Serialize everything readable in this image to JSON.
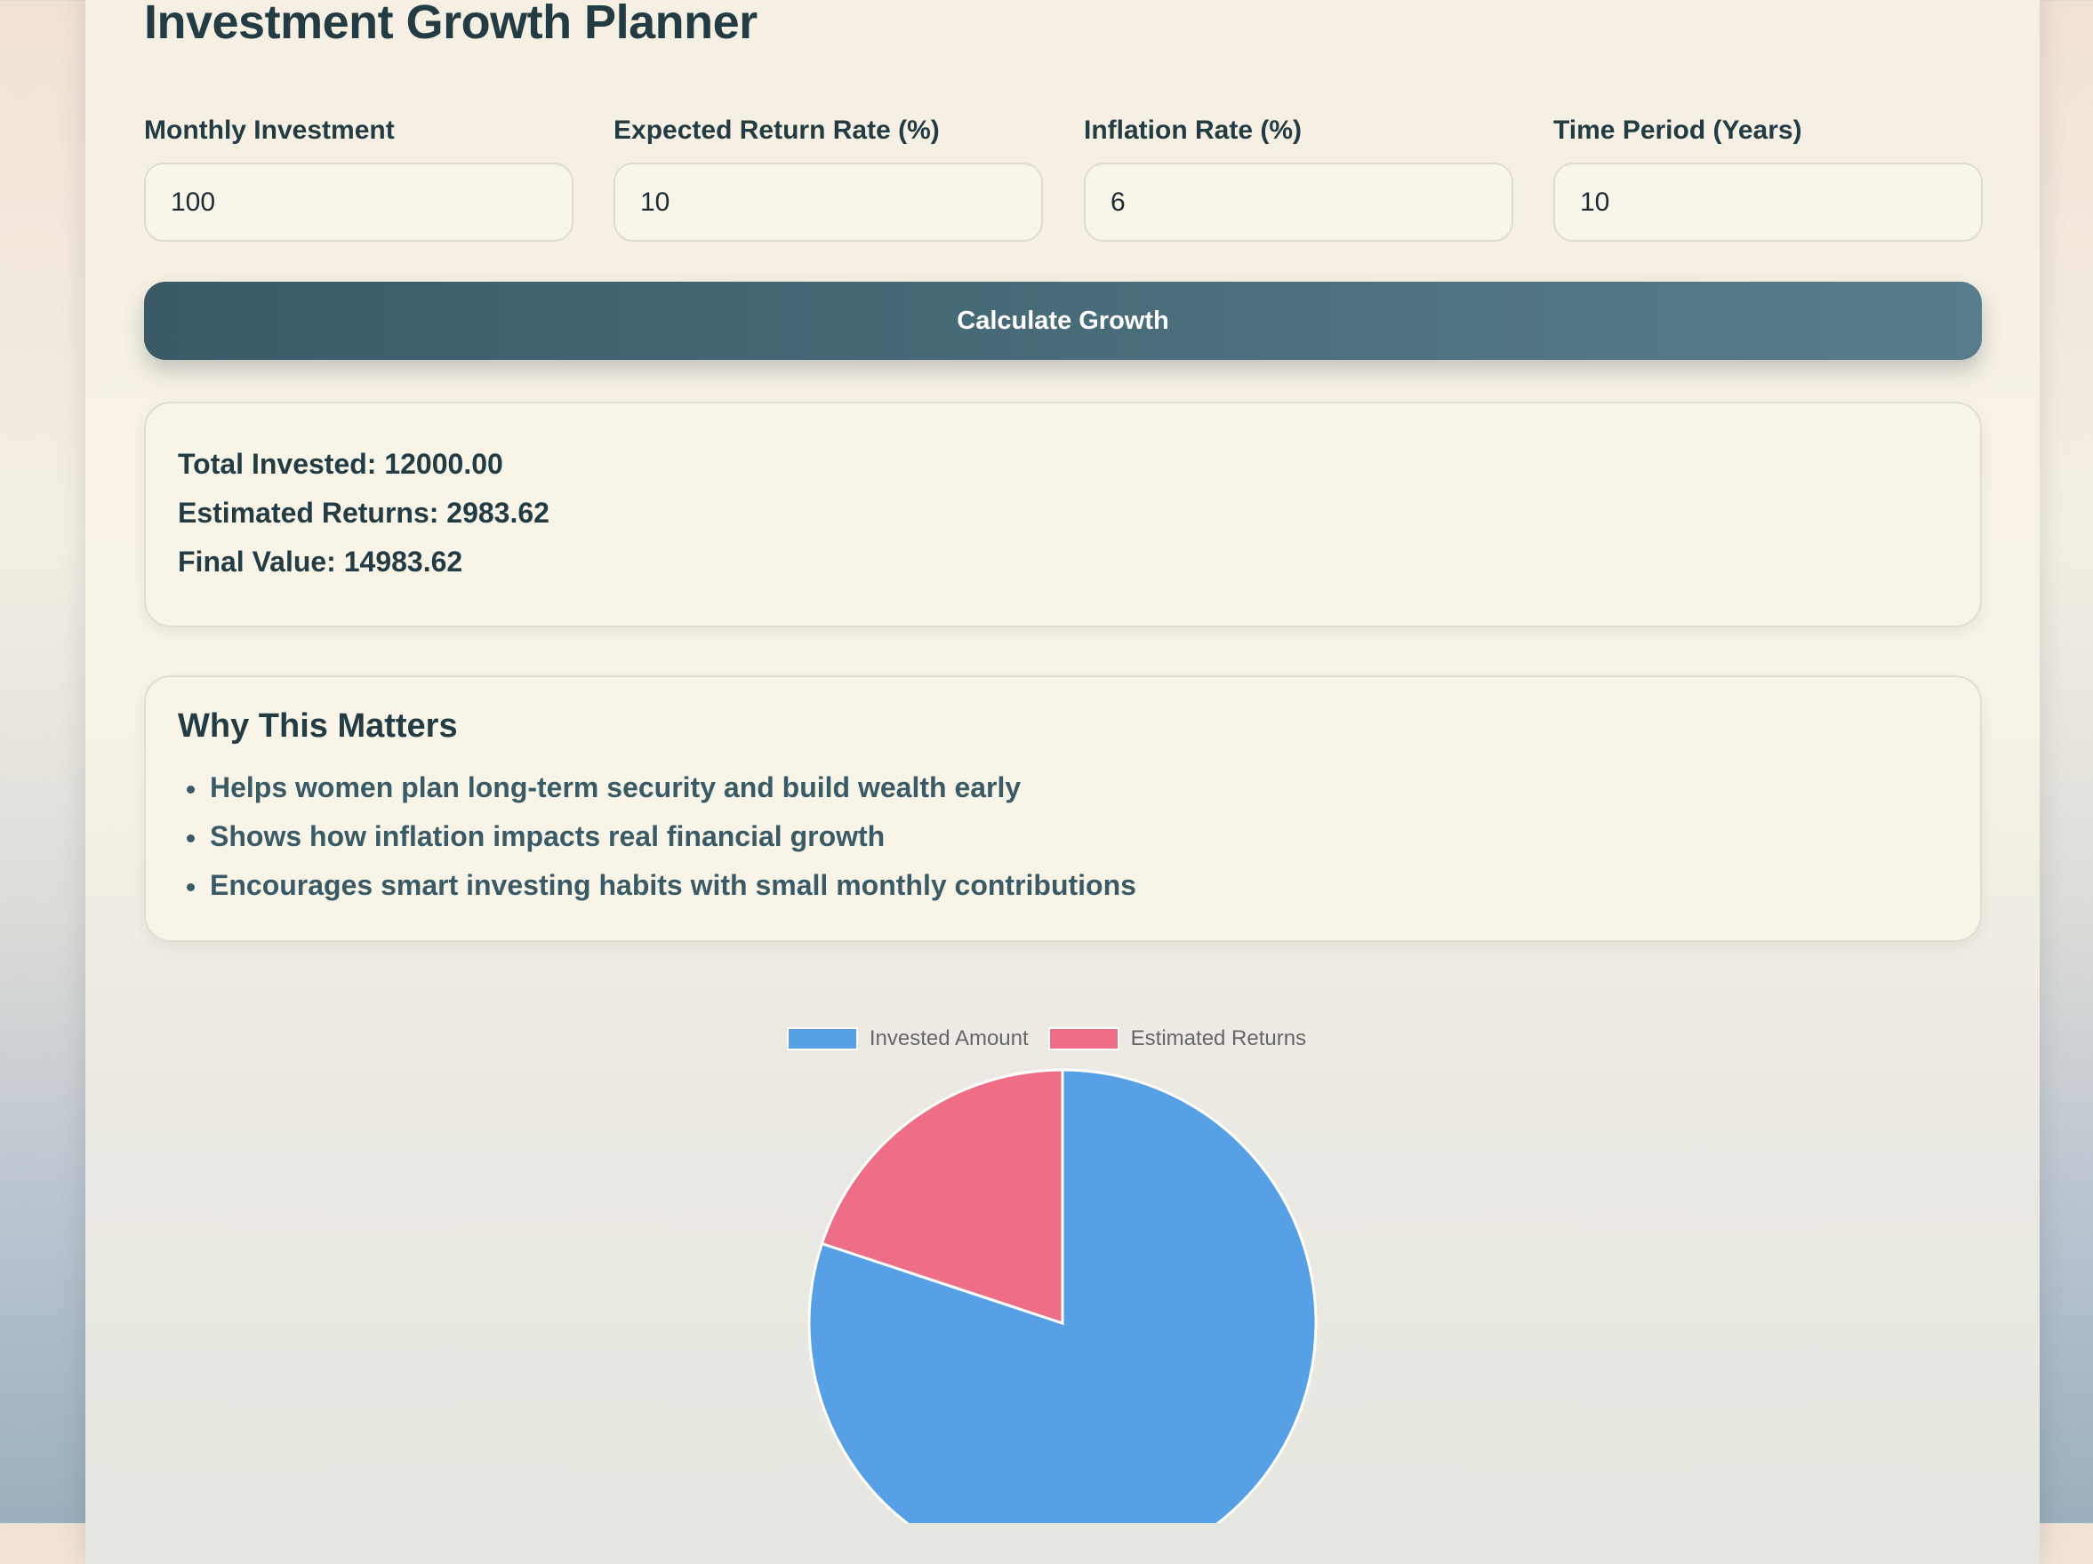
{
  "header": {
    "title": "Investment Growth Planner"
  },
  "form": {
    "fields": [
      {
        "label": "Monthly Investment",
        "value": "100"
      },
      {
        "label": "Expected Return Rate (%)",
        "value": "10"
      },
      {
        "label": "Inflation Rate (%)",
        "value": "6"
      },
      {
        "label": "Time Period (Years)",
        "value": "10"
      }
    ],
    "button": "Calculate Growth"
  },
  "results": [
    {
      "label": "Total Invested:",
      "value": "12000.00"
    },
    {
      "label": "Estimated Returns:",
      "value": "2983.62"
    },
    {
      "label": "Final Value:",
      "value": "14983.62"
    }
  ],
  "why": {
    "title": "Why This Matters",
    "items": [
      "Helps women plan long-term security and build wealth early",
      "Shows how inflation impacts real financial growth",
      "Encourages smart investing habits with small monthly contributions"
    ]
  },
  "chart_data": {
    "type": "pie",
    "categories": [
      "Invested Amount",
      "Estimated Returns"
    ],
    "values": [
      12000,
      2983.62
    ],
    "colors": [
      "#57a0e5",
      "#ef6e87"
    ]
  }
}
